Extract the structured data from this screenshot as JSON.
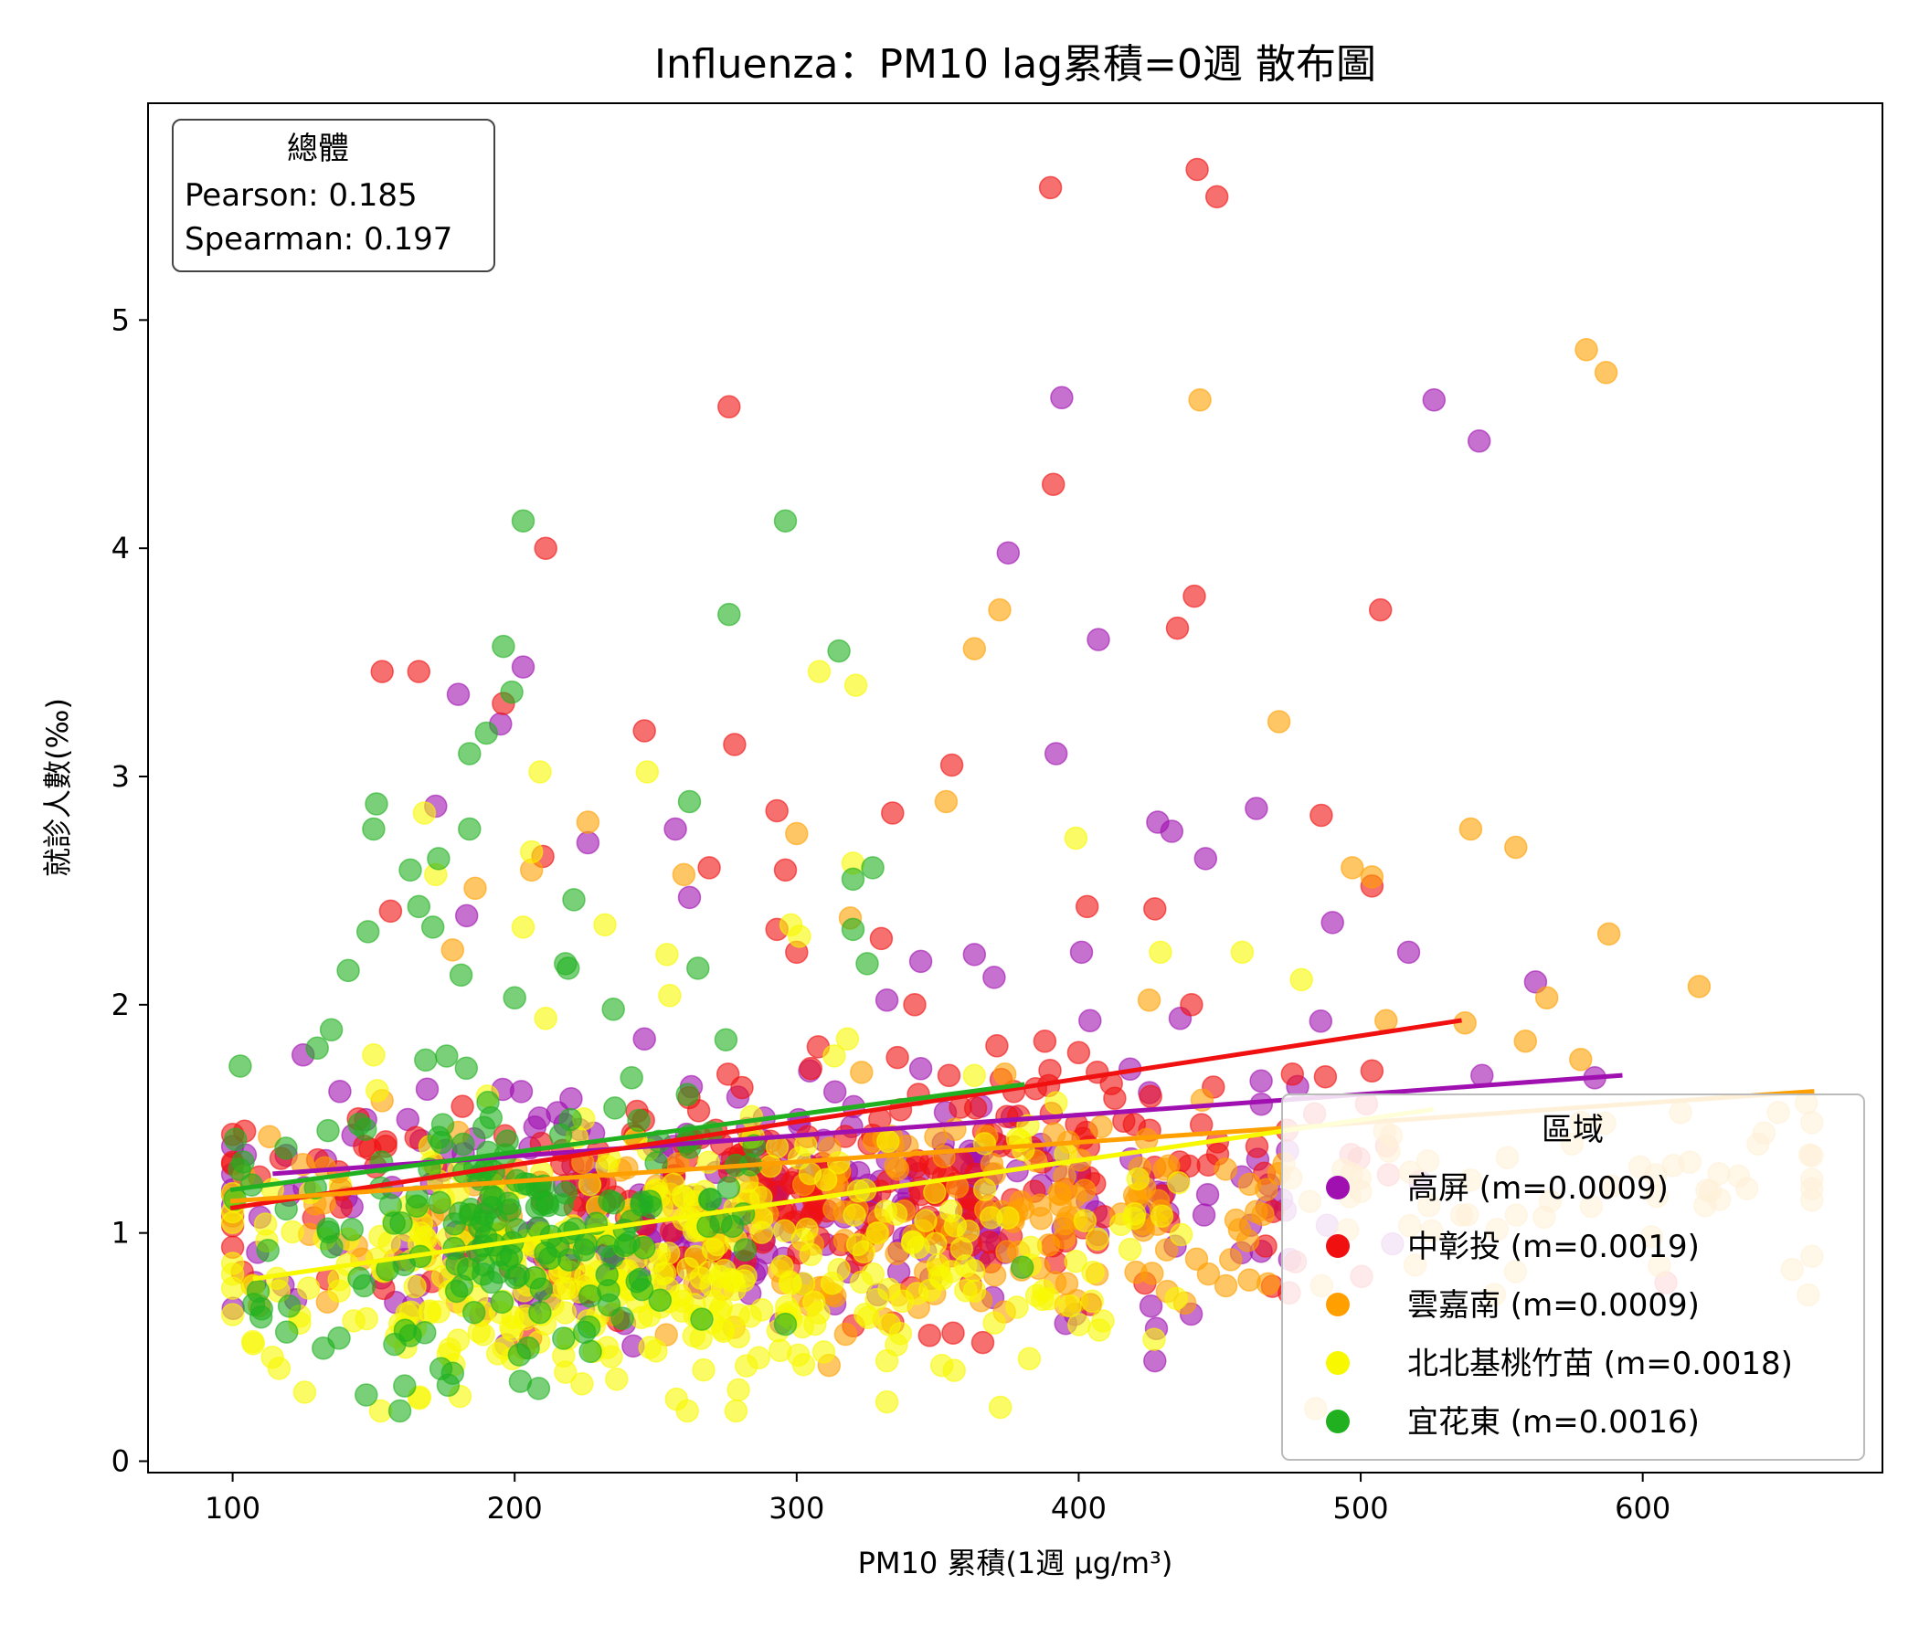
{
  "chart_data": {
    "type": "scatter",
    "title": "Influenza：PM10 lag累積=0週 散布圖",
    "xlabel": "PM10 累積(1週 μg/m³)",
    "ylabel": "就診人數(‰)",
    "xlim": [
      70,
      685
    ],
    "ylim": [
      -0.05,
      5.95
    ],
    "xticks": [
      100,
      200,
      300,
      400,
      500,
      600
    ],
    "yticks": [
      0,
      1,
      2,
      3,
      4,
      5
    ],
    "grid": false,
    "stats_box": {
      "title": "總體",
      "pearson": "Pearson: 0.185",
      "spearman": "Spearman: 0.197",
      "position": "top-left"
    },
    "legend": {
      "title": "區域",
      "position": "bottom-right"
    },
    "series": [
      {
        "name": "高屏 (m=0.0009)",
        "color": "#a010b0",
        "trend": {
          "x": [
            115,
            592
          ],
          "y": [
            1.26,
            1.69
          ]
        },
        "highlight": [
          [
            394,
            4.66
          ],
          [
            526,
            4.65
          ],
          [
            542,
            4.47
          ],
          [
            375,
            3.98
          ],
          [
            407,
            3.6
          ],
          [
            392,
            3.1
          ],
          [
            433,
            2.76
          ],
          [
            180,
            3.36
          ],
          [
            195,
            3.23
          ],
          [
            203,
            3.48
          ],
          [
            172,
            2.87
          ],
          [
            226,
            2.71
          ],
          [
            257,
            2.77
          ],
          [
            262,
            2.47
          ],
          [
            246,
            1.85
          ],
          [
            183,
            2.39
          ],
          [
            463,
            2.86
          ],
          [
            428,
            2.8
          ],
          [
            445,
            2.64
          ],
          [
            490,
            2.36
          ],
          [
            517,
            2.23
          ],
          [
            562,
            2.1
          ],
          [
            401,
            2.23
          ],
          [
            363,
            2.22
          ],
          [
            370,
            2.12
          ],
          [
            344,
            2.19
          ],
          [
            332,
            2.02
          ],
          [
            436,
            1.94
          ],
          [
            404,
            1.93
          ],
          [
            344,
            1.72
          ],
          [
            366,
            1.36
          ],
          [
            138,
            1.62
          ],
          [
            125,
            1.78
          ],
          [
            169,
            1.63
          ],
          [
            119,
            1.34
          ],
          [
            583,
            1.68
          ],
          [
            543,
            1.69
          ],
          [
            427,
            0.44
          ]
        ],
        "bulk": {
          "count": 300,
          "x_mid": 290,
          "x_spread": 150,
          "y_center_at": [
            [
              120,
              1.02
            ],
            [
              400,
              1.12
            ],
            [
              590,
              1.25
            ]
          ],
          "y_spread": 0.25,
          "seed": 11
        }
      },
      {
        "name": "中彰投 (m=0.0019)",
        "color": "#f01010",
        "trend": {
          "x": [
            100,
            535
          ],
          "y": [
            1.11,
            1.93
          ]
        },
        "highlight": [
          [
            390,
            5.58
          ],
          [
            442,
            5.66
          ],
          [
            449,
            5.54
          ],
          [
            276,
            4.62
          ],
          [
            391,
            4.28
          ],
          [
            211,
            4.0
          ],
          [
            441,
            3.79
          ],
          [
            435,
            3.65
          ],
          [
            507,
            3.73
          ],
          [
            153,
            3.46
          ],
          [
            166,
            3.46
          ],
          [
            196,
            3.32
          ],
          [
            246,
            3.2
          ],
          [
            278,
            3.14
          ],
          [
            355,
            3.05
          ],
          [
            293,
            2.85
          ],
          [
            334,
            2.84
          ],
          [
            486,
            2.83
          ],
          [
            296,
            2.59
          ],
          [
            269,
            2.6
          ],
          [
            210,
            2.65
          ],
          [
            156,
            2.41
          ],
          [
            403,
            2.43
          ],
          [
            427,
            2.42
          ],
          [
            504,
            2.52
          ],
          [
            330,
            2.29
          ],
          [
            293,
            2.33
          ],
          [
            300,
            2.23
          ],
          [
            440,
            2.0
          ],
          [
            416,
            1.49
          ],
          [
            388,
            1.84
          ],
          [
            371,
            1.82
          ],
          [
            400,
            1.79
          ],
          [
            377,
            1.62
          ],
          [
            504,
            1.71
          ],
          [
            366,
            0.52
          ],
          [
            100,
            1.17
          ]
        ],
        "bulk": {
          "count": 260,
          "x_mid": 300,
          "x_spread": 160,
          "y_center_at": [
            [
              110,
              1.12
            ],
            [
              350,
              1.22
            ],
            [
              500,
              1.3
            ]
          ],
          "y_spread": 0.26,
          "seed": 22
        }
      },
      {
        "name": "雲嘉南 (m=0.0009)",
        "color": "#ffa000",
        "trend": {
          "x": [
            100,
            660
          ],
          "y": [
            1.14,
            1.62
          ]
        },
        "highlight": [
          [
            580,
            4.87
          ],
          [
            587,
            4.77
          ],
          [
            443,
            4.65
          ],
          [
            372,
            3.73
          ],
          [
            363,
            3.56
          ],
          [
            471,
            3.24
          ],
          [
            353,
            2.89
          ],
          [
            539,
            2.77
          ],
          [
            555,
            2.69
          ],
          [
            497,
            2.6
          ],
          [
            504,
            2.56
          ],
          [
            588,
            2.31
          ],
          [
            620,
            2.08
          ],
          [
            566,
            2.03
          ],
          [
            537,
            1.92
          ],
          [
            509,
            1.93
          ],
          [
            425,
            2.02
          ],
          [
            226,
            2.8
          ],
          [
            206,
            2.59
          ],
          [
            300,
            2.75
          ],
          [
            260,
            2.57
          ],
          [
            319,
            2.38
          ],
          [
            186,
            2.51
          ],
          [
            178,
            2.24
          ],
          [
            578,
            1.76
          ],
          [
            658,
            1.57
          ],
          [
            627,
            1.26
          ],
          [
            599,
            1.29
          ],
          [
            575,
            1.39
          ],
          [
            552,
            1.33
          ],
          [
            471,
            1.26
          ],
          [
            446,
            0.82
          ],
          [
            484,
            0.23
          ],
          [
            104,
            1.25
          ]
        ],
        "bulk": {
          "count": 230,
          "x_mid": 380,
          "x_spread": 220,
          "y_center_at": [
            [
              110,
              1.0
            ],
            [
              400,
              1.1
            ],
            [
              620,
              1.2
            ]
          ],
          "y_spread": 0.24,
          "seed": 33
        }
      },
      {
        "name": "北北基桃竹苗 (m=0.0018)",
        "color": "#f8f800",
        "trend": {
          "x": [
            108,
            525
          ],
          "y": [
            0.8,
            1.54
          ]
        },
        "highlight": [
          [
            308,
            3.46
          ],
          [
            321,
            3.4
          ],
          [
            209,
            3.02
          ],
          [
            247,
            3.02
          ],
          [
            168,
            2.84
          ],
          [
            172,
            2.57
          ],
          [
            206,
            2.67
          ],
          [
            232,
            2.35
          ],
          [
            203,
            2.34
          ],
          [
            254,
            2.22
          ],
          [
            301,
            2.3
          ],
          [
            298,
            2.35
          ],
          [
            320,
            2.62
          ],
          [
            399,
            2.73
          ],
          [
            479,
            2.11
          ],
          [
            458,
            2.23
          ],
          [
            429,
            2.23
          ],
          [
            255,
            2.04
          ],
          [
            211,
            1.94
          ],
          [
            150,
            1.78
          ],
          [
            318,
            1.85
          ],
          [
            284,
            1.51
          ],
          [
            363,
            1.69
          ],
          [
            332,
            0.26
          ],
          [
            397,
            0.68
          ],
          [
            332,
            0.44
          ],
          [
            267,
            0.4
          ],
          [
            218,
            0.39
          ]
        ],
        "bulk": {
          "count": 380,
          "x_mid": 245,
          "x_spread": 130,
          "y_center_at": [
            [
              110,
              0.78
            ],
            [
              250,
              0.83
            ],
            [
              420,
              1.0
            ],
            [
              520,
              1.18
            ]
          ],
          "y_spread": 0.27,
          "seed": 44
        }
      },
      {
        "name": "宜花東 (m=0.0016)",
        "color": "#20b020",
        "trend": {
          "x": [
            100,
            380
          ],
          "y": [
            1.19,
            1.65
          ]
        },
        "highlight": [
          [
            203,
            4.12
          ],
          [
            296,
            4.12
          ],
          [
            276,
            3.71
          ],
          [
            315,
            3.55
          ],
          [
            196,
            3.57
          ],
          [
            199,
            3.37
          ],
          [
            190,
            3.19
          ],
          [
            184,
            3.1
          ],
          [
            151,
            2.88
          ],
          [
            150,
            2.77
          ],
          [
            173,
            2.64
          ],
          [
            184,
            2.77
          ],
          [
            163,
            2.59
          ],
          [
            171,
            2.34
          ],
          [
            166,
            2.43
          ],
          [
            148,
            2.32
          ],
          [
            141,
            2.15
          ],
          [
            181,
            2.13
          ],
          [
            221,
            2.46
          ],
          [
            262,
            2.89
          ],
          [
            320,
            2.55
          ],
          [
            327,
            2.6
          ],
          [
            320,
            2.33
          ],
          [
            325,
            2.18
          ],
          [
            265,
            2.16
          ],
          [
            218,
            2.18
          ],
          [
            219,
            2.16
          ],
          [
            235,
            1.98
          ],
          [
            200,
            2.03
          ],
          [
            130,
            1.81
          ],
          [
            135,
            1.89
          ],
          [
            101,
            1.41
          ],
          [
            161,
            0.33
          ],
          [
            163,
            0.55
          ],
          [
            202,
            0.35
          ],
          [
            296,
            0.6
          ],
          [
            380,
            0.85
          ]
        ],
        "bulk": {
          "count": 180,
          "x_mid": 195,
          "x_spread": 65,
          "y_center_at": [
            [
              110,
              1.1
            ],
            [
              200,
              1.05
            ],
            [
              380,
              1.2
            ]
          ],
          "y_spread": 0.33,
          "seed": 55
        }
      }
    ]
  }
}
